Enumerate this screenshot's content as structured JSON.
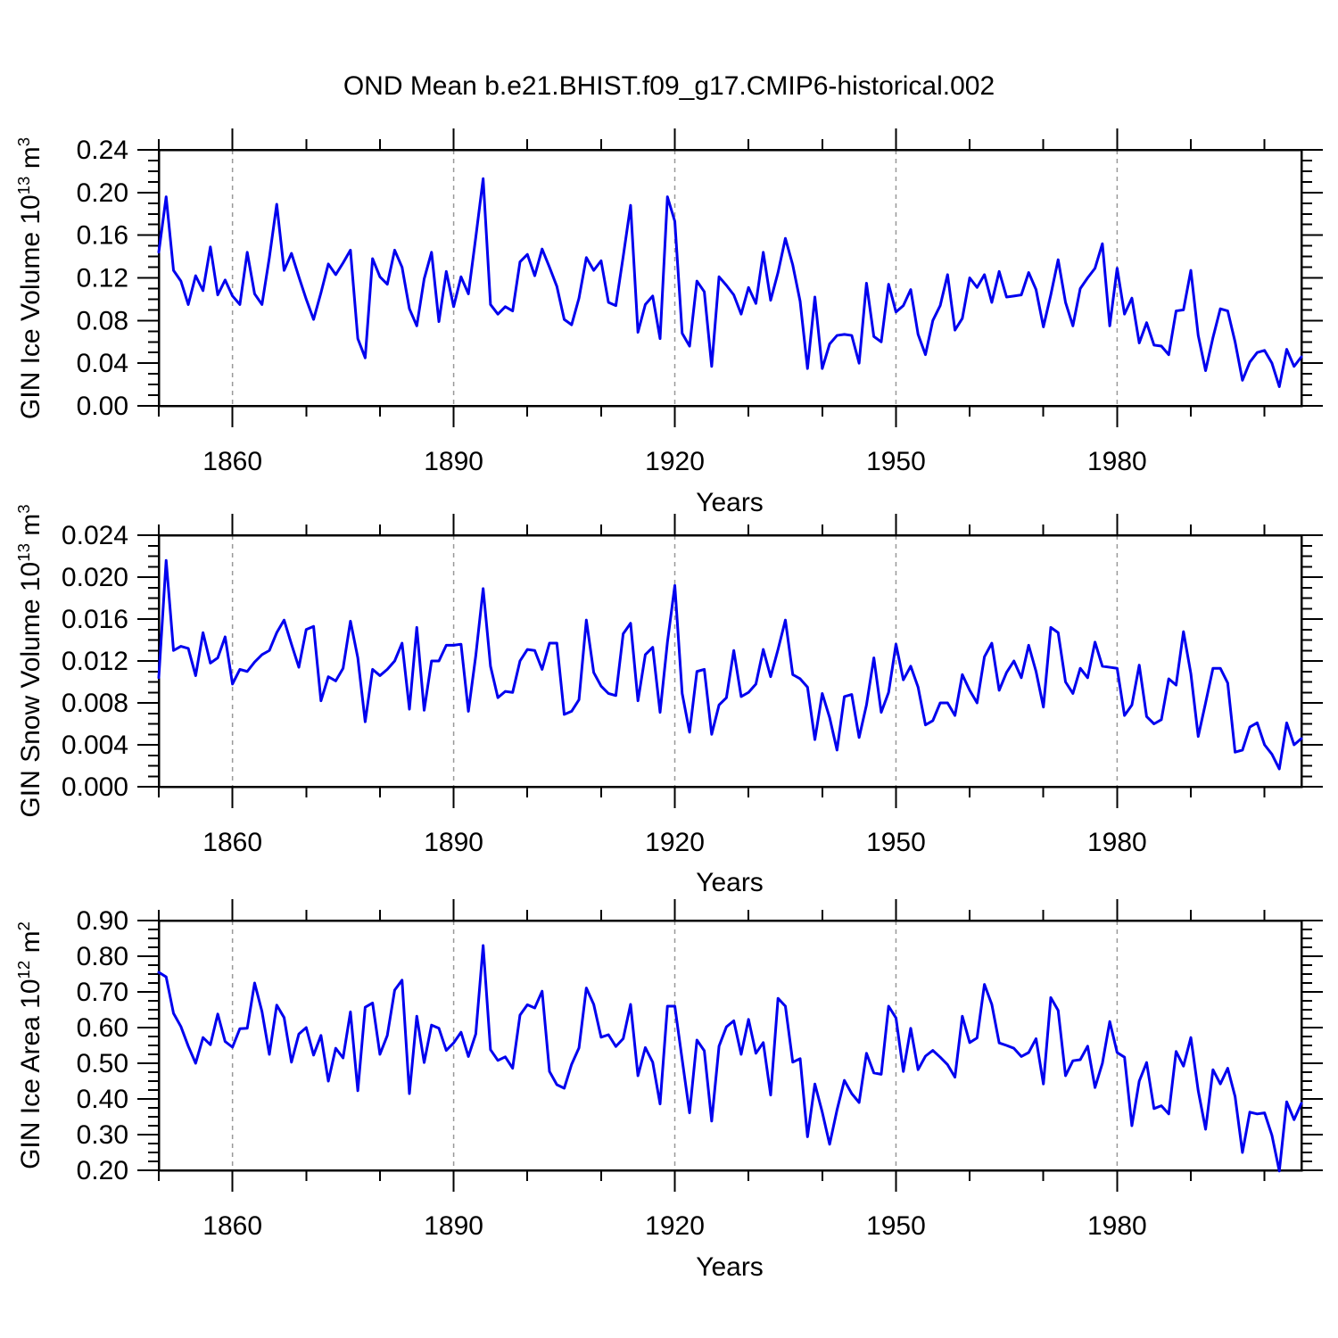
{
  "title": "OND Mean b.e21.BHIST.f09_g17.CMIP6-historical.002",
  "figure": {
    "background": "#ffffff",
    "line_color": "#0000EE",
    "axis_color": "#000000",
    "grid_color": "#999999"
  },
  "x_axis": {
    "label": "Years",
    "start": 1850,
    "end": 2005,
    "major_ticks": [
      1860,
      1890,
      1920,
      1950,
      1980
    ],
    "minor_step": 10
  },
  "chart_data": [
    {
      "type": "line",
      "name": "gin-ice-volume",
      "ylabel": {
        "prefix": "GIN Ice Volume 10",
        "exponent": "13",
        "unit": " m",
        "unit_exponent": "3"
      },
      "ylim": [
        0.0,
        0.24
      ],
      "ymajor": 0.04,
      "yminor": 0.01,
      "ydecimals": 2,
      "x_start": 1850,
      "values": [
        0.144,
        0.196,
        0.127,
        0.117,
        0.095,
        0.122,
        0.108,
        0.149,
        0.104,
        0.118,
        0.103,
        0.095,
        0.144,
        0.105,
        0.095,
        0.139,
        0.189,
        0.127,
        0.143,
        0.121,
        0.1,
        0.081,
        0.106,
        0.133,
        0.123,
        0.134,
        0.146,
        0.063,
        0.045,
        0.138,
        0.121,
        0.114,
        0.146,
        0.13,
        0.091,
        0.075,
        0.119,
        0.144,
        0.079,
        0.126,
        0.093,
        0.121,
        0.105,
        0.158,
        0.213,
        0.095,
        0.086,
        0.093,
        0.089,
        0.135,
        0.142,
        0.122,
        0.147,
        0.13,
        0.112,
        0.081,
        0.076,
        0.101,
        0.139,
        0.127,
        0.136,
        0.097,
        0.094,
        0.14,
        0.188,
        0.069,
        0.095,
        0.103,
        0.063,
        0.196,
        0.173,
        0.068,
        0.056,
        0.117,
        0.107,
        0.037,
        0.121,
        0.113,
        0.104,
        0.086,
        0.111,
        0.096,
        0.144,
        0.099,
        0.125,
        0.157,
        0.132,
        0.098,
        0.035,
        0.102,
        0.035,
        0.058,
        0.066,
        0.067,
        0.066,
        0.04,
        0.115,
        0.065,
        0.06,
        0.114,
        0.088,
        0.094,
        0.109,
        0.067,
        0.048,
        0.08,
        0.094,
        0.123,
        0.071,
        0.082,
        0.12,
        0.111,
        0.123,
        0.097,
        0.126,
        0.102,
        0.103,
        0.104,
        0.125,
        0.109,
        0.074,
        0.104,
        0.137,
        0.097,
        0.075,
        0.11,
        0.12,
        0.129,
        0.152,
        0.075,
        0.129,
        0.086,
        0.101,
        0.059,
        0.078,
        0.057,
        0.056,
        0.048,
        0.089,
        0.09,
        0.127,
        0.066,
        0.033,
        0.064,
        0.091,
        0.089,
        0.06,
        0.024,
        0.041,
        0.05,
        0.052,
        0.04,
        0.018,
        0.053,
        0.037,
        0.046
      ]
    },
    {
      "type": "line",
      "name": "gin-snow-volume",
      "ylabel": {
        "prefix": "GIN Snow Volume 10",
        "exponent": "13",
        "unit": " m",
        "unit_exponent": "3"
      },
      "ylim": [
        0.0,
        0.024
      ],
      "ymajor": 0.004,
      "yminor": 0.001,
      "ydecimals": 3,
      "x_start": 1850,
      "values": [
        0.0104,
        0.0216,
        0.013,
        0.0134,
        0.0132,
        0.0106,
        0.0147,
        0.0118,
        0.0123,
        0.0143,
        0.0098,
        0.0112,
        0.011,
        0.0119,
        0.0126,
        0.013,
        0.0147,
        0.0159,
        0.0136,
        0.0114,
        0.015,
        0.0153,
        0.0082,
        0.0105,
        0.0101,
        0.0113,
        0.0158,
        0.0123,
        0.0062,
        0.0112,
        0.0106,
        0.0112,
        0.012,
        0.0137,
        0.0074,
        0.0152,
        0.0073,
        0.012,
        0.012,
        0.0135,
        0.0135,
        0.0136,
        0.0072,
        0.0125,
        0.0189,
        0.0115,
        0.0085,
        0.0091,
        0.009,
        0.012,
        0.0131,
        0.013,
        0.0112,
        0.0137,
        0.0137,
        0.0069,
        0.0072,
        0.0083,
        0.0159,
        0.0109,
        0.0096,
        0.0089,
        0.0087,
        0.0146,
        0.0156,
        0.0082,
        0.0126,
        0.0133,
        0.0071,
        0.0138,
        0.0192,
        0.0089,
        0.0052,
        0.011,
        0.0112,
        0.005,
        0.0078,
        0.0085,
        0.013,
        0.0086,
        0.009,
        0.0098,
        0.0131,
        0.0105,
        0.0131,
        0.0159,
        0.0107,
        0.0103,
        0.0095,
        0.0045,
        0.0089,
        0.0066,
        0.0035,
        0.0086,
        0.0088,
        0.0047,
        0.0078,
        0.0123,
        0.0071,
        0.009,
        0.0136,
        0.0102,
        0.0115,
        0.0095,
        0.0059,
        0.0063,
        0.008,
        0.008,
        0.0068,
        0.0107,
        0.0092,
        0.008,
        0.0124,
        0.0137,
        0.0092,
        0.0109,
        0.012,
        0.0104,
        0.0135,
        0.011,
        0.0076,
        0.0152,
        0.0147,
        0.01,
        0.0089,
        0.0113,
        0.0104,
        0.0138,
        0.0115,
        0.0114,
        0.0113,
        0.0068,
        0.0078,
        0.0116,
        0.0067,
        0.006,
        0.0064,
        0.0103,
        0.0097,
        0.0148,
        0.0108,
        0.0048,
        0.008,
        0.0113,
        0.0113,
        0.0099,
        0.0033,
        0.0035,
        0.0057,
        0.0061,
        0.004,
        0.0031,
        0.0017,
        0.0061,
        0.004,
        0.0046
      ]
    },
    {
      "type": "line",
      "name": "gin-ice-area",
      "ylabel": {
        "prefix": "GIN Ice Area 10",
        "exponent": "12",
        "unit": " m",
        "unit_exponent": "2"
      },
      "ylim": [
        0.2,
        0.9
      ],
      "ymajor": 0.1,
      "yminor": 0.025,
      "ydecimals": 2,
      "x_start": 1850,
      "values": [
        0.755,
        0.742,
        0.64,
        0.603,
        0.548,
        0.5,
        0.572,
        0.552,
        0.638,
        0.561,
        0.545,
        0.597,
        0.598,
        0.725,
        0.645,
        0.525,
        0.663,
        0.628,
        0.503,
        0.582,
        0.6,
        0.523,
        0.578,
        0.45,
        0.542,
        0.515,
        0.644,
        0.423,
        0.657,
        0.669,
        0.525,
        0.578,
        0.705,
        0.733,
        0.415,
        0.632,
        0.502,
        0.607,
        0.598,
        0.536,
        0.557,
        0.587,
        0.519,
        0.582,
        0.83,
        0.538,
        0.508,
        0.518,
        0.486,
        0.635,
        0.664,
        0.655,
        0.702,
        0.477,
        0.44,
        0.43,
        0.497,
        0.543,
        0.711,
        0.665,
        0.573,
        0.58,
        0.547,
        0.569,
        0.665,
        0.465,
        0.544,
        0.503,
        0.386,
        0.66,
        0.66,
        0.51,
        0.361,
        0.565,
        0.535,
        0.338,
        0.548,
        0.602,
        0.619,
        0.525,
        0.623,
        0.528,
        0.558,
        0.411,
        0.682,
        0.66,
        0.503,
        0.513,
        0.294,
        0.442,
        0.363,
        0.273,
        0.369,
        0.452,
        0.415,
        0.39,
        0.528,
        0.473,
        0.469,
        0.66,
        0.627,
        0.477,
        0.598,
        0.482,
        0.52,
        0.536,
        0.517,
        0.496,
        0.461,
        0.632,
        0.558,
        0.571,
        0.721,
        0.665,
        0.557,
        0.55,
        0.542,
        0.519,
        0.53,
        0.569,
        0.442,
        0.684,
        0.648,
        0.465,
        0.507,
        0.51,
        0.548,
        0.432,
        0.5,
        0.617,
        0.53,
        0.517,
        0.325,
        0.45,
        0.502,
        0.373,
        0.381,
        0.358,
        0.533,
        0.492,
        0.572,
        0.423,
        0.315,
        0.482,
        0.442,
        0.486,
        0.407,
        0.25,
        0.363,
        0.358,
        0.361,
        0.298,
        0.198,
        0.392,
        0.342,
        0.388
      ]
    }
  ]
}
